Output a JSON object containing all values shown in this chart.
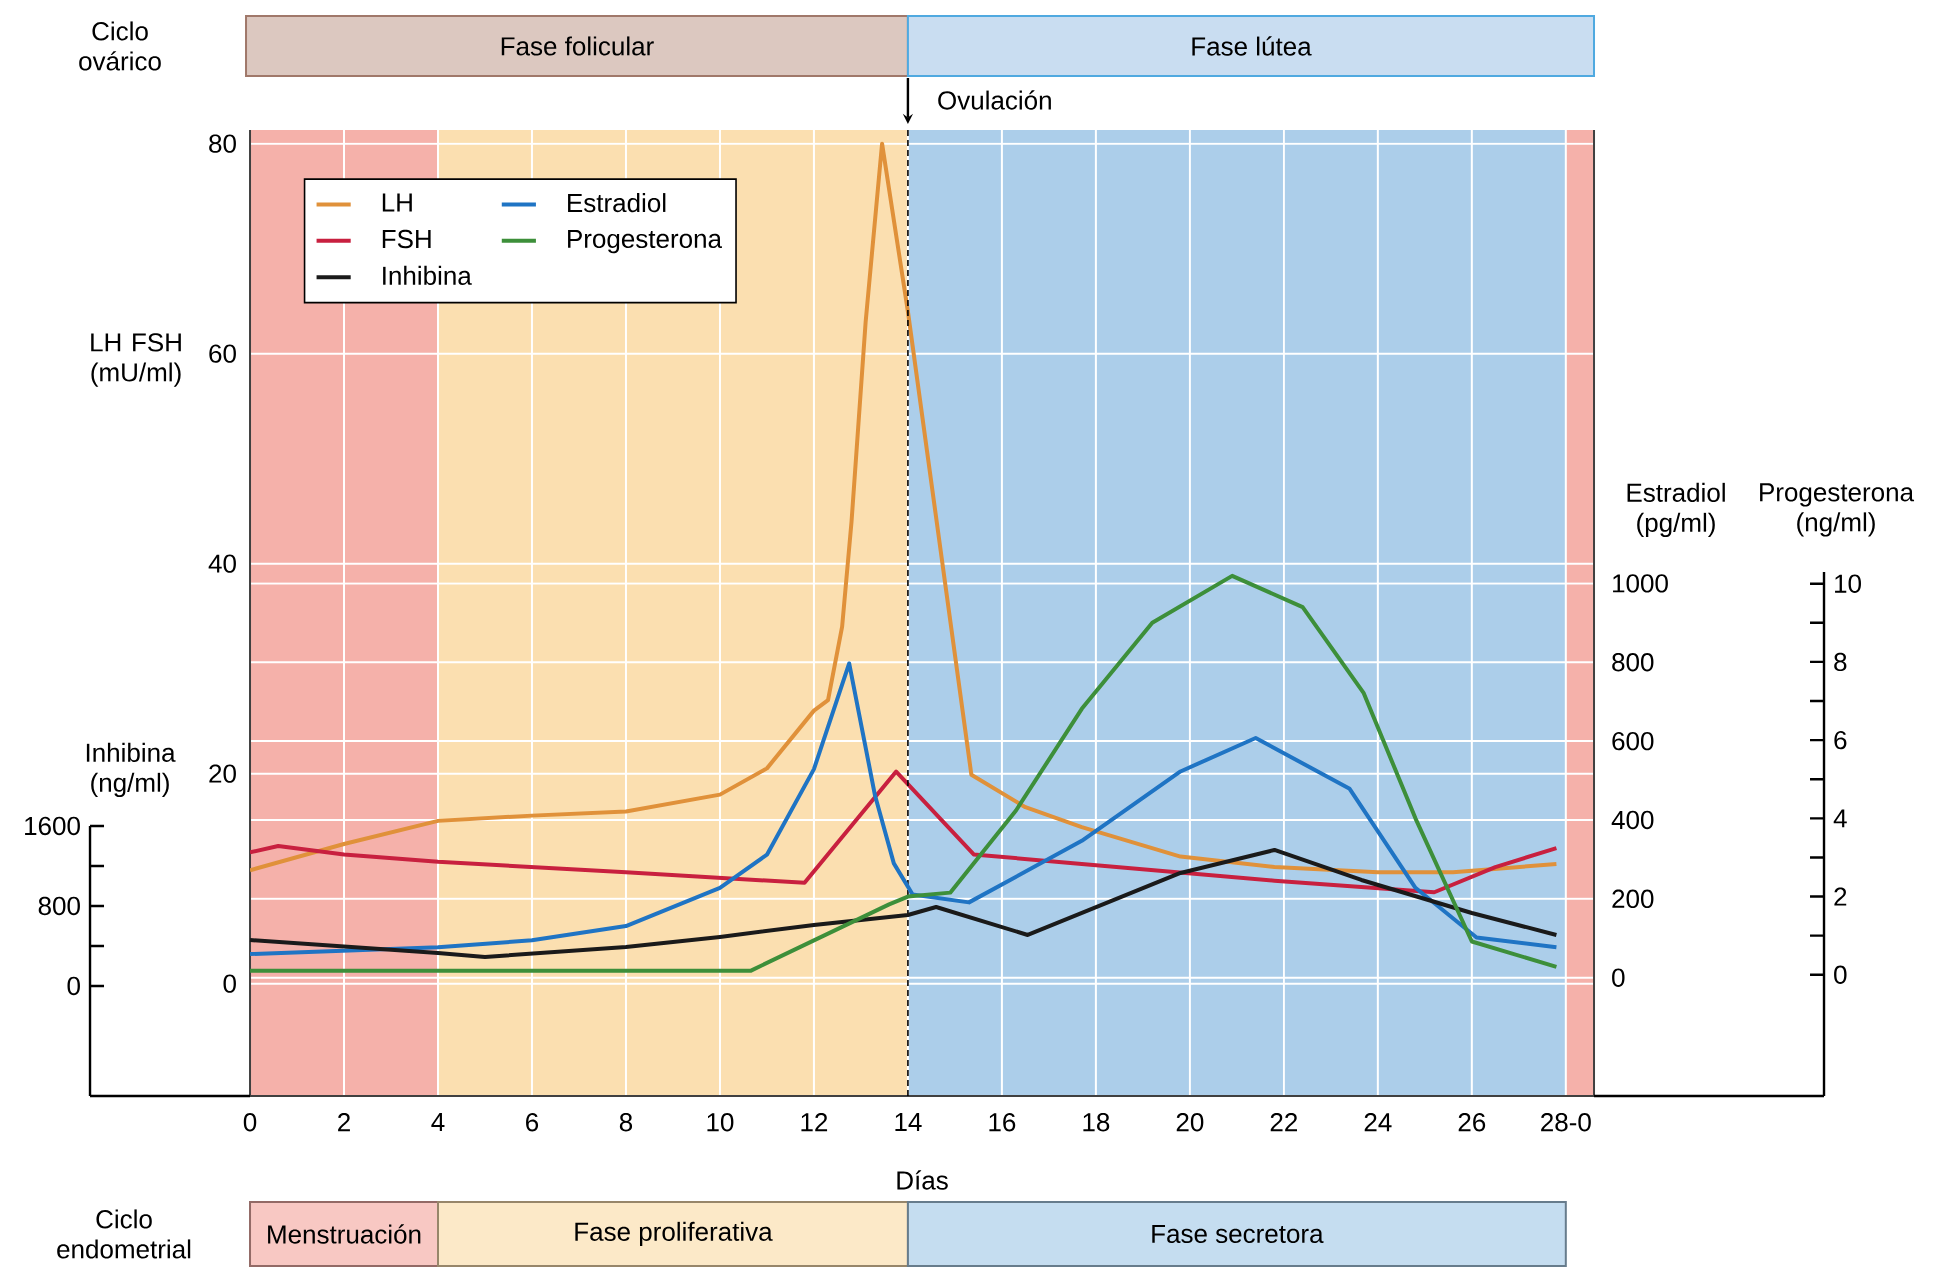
{
  "chart_data": [
    {
      "type": "line",
      "xlabel": "Días",
      "ylabel": "LH FSH (mU/ml)",
      "y2label": "Estradiol (pg/ml)",
      "xlim": [
        0,
        28.6
      ],
      "xticks": [
        0,
        2,
        4,
        6,
        8,
        10,
        12,
        14,
        16,
        18,
        20,
        22,
        24,
        26,
        {
          "value": 28,
          "label": "28-0"
        }
      ],
      "ylim": [
        -10.7,
        81.3
      ],
      "yticks": [
        0,
        20,
        40,
        60,
        80
      ],
      "y2lim": [
        -300,
        2150
      ],
      "y2ticks": [
        0,
        200,
        400,
        600,
        800,
        1000
      ],
      "grid": true,
      "legend": "top left",
      "series": [
        {
          "name": "LH",
          "color": "#e0913a",
          "x": [
            0,
            2,
            4,
            6,
            8,
            10,
            11,
            12,
            12.3,
            12.6,
            12.8,
            13.1,
            13.45,
            14,
            15.35,
            16.5,
            17.7,
            19.8,
            21.8,
            24,
            25.6,
            27.8
          ],
          "values": [
            10.8,
            13.3,
            15.5,
            16,
            16.4,
            18,
            20.5,
            26,
            27,
            34,
            44,
            63,
            80,
            64,
            19.9,
            16.8,
            14.9,
            12.1,
            11.1,
            10.6,
            10.6,
            11.4
          ]
        },
        {
          "name": "FSH",
          "color": "#c8203f",
          "x": [
            0,
            0.6,
            2,
            4,
            8,
            11.8,
            13.75,
            15.4,
            17.7,
            21.8,
            25.2,
            26.5,
            27.8
          ],
          "values": [
            12.5,
            13.1,
            12.3,
            11.6,
            10.6,
            9.6,
            20.2,
            12.3,
            11.4,
            9.8,
            8.7,
            11.1,
            12.9
          ]
        },
        {
          "name": "Estradiol",
          "color": "#1f74c4",
          "axis": "y2",
          "x": [
            0,
            4,
            6,
            8,
            10,
            11,
            12,
            12.75,
            13.3,
            13.7,
            14.1,
            15.3,
            17.7,
            19.8,
            21.4,
            23.4,
            24.8,
            26.1,
            27.8
          ],
          "values": [
            60,
            77,
            95,
            131,
            228,
            312,
            529,
            797,
            462,
            290,
            211,
            191,
            347,
            523,
            608,
            479,
            228,
            102,
            77
          ]
        }
      ],
      "bands": [
        {
          "axis": "x",
          "from": 0,
          "to": 4,
          "color": "#f5b1aa"
        },
        {
          "axis": "x",
          "from": 4,
          "to": 14,
          "color": "#fbdfb0"
        },
        {
          "axis": "x",
          "from": 14,
          "to": 28,
          "color": "#acceea"
        },
        {
          "axis": "x",
          "from": 28,
          "to": 28.6,
          "color": "#f5b1aa"
        }
      ],
      "ref_lines": [
        {
          "axis": "x",
          "value": 14,
          "label": "Ovulación",
          "line_style": "dashed"
        }
      ],
      "annotations": [
        "Ciclo ovárico",
        "Fase folicular",
        "Fase lútea",
        "Ciclo endometrial",
        "Menstruación",
        "Fase proliferativa",
        "Fase secretora"
      ]
    },
    {
      "type": "line",
      "ylabel": "Inhibina (ng/ml)",
      "xlim": [
        0,
        28.6
      ],
      "ylim": [
        -1100,
        1600
      ],
      "yticks": [
        0,
        800,
        1600
      ],
      "tick_labels": "y",
      "series": [
        {
          "name": "Inhibina",
          "color": "#1a1a1a",
          "x": [
            0,
            4,
            5,
            8,
            10,
            12,
            14,
            14.6,
            16.55,
            19.8,
            21.8,
            23.65,
            26,
            27.8
          ],
          "values": [
            460,
            330,
            290,
            390,
            490,
            610,
            710,
            790,
            510,
            1130,
            1360,
            1060,
            730,
            510
          ]
        }
      ]
    },
    {
      "type": "line",
      "ylabel": "Progesterona (ng/ml)",
      "xlim": [
        0,
        28.6
      ],
      "ylim": [
        -3.1,
        10.3
      ],
      "yticks": [
        0,
        2,
        4,
        6,
        8,
        10
      ],
      "tick_labels": "y",
      "series": [
        {
          "name": "Progesterona",
          "color": "#3d8f3a",
          "x": [
            0,
            10.65,
            13.6,
            14,
            14.9,
            16.3,
            17.7,
            19.2,
            20.9,
            22.4,
            23.7,
            24.8,
            26,
            27.8
          ],
          "values": [
            0.1,
            0.1,
            1.8,
            2,
            2.1,
            4.2,
            6.8,
            9,
            10.2,
            9.4,
            7.2,
            4,
            0.85,
            0.2
          ]
        }
      ]
    }
  ]
}
